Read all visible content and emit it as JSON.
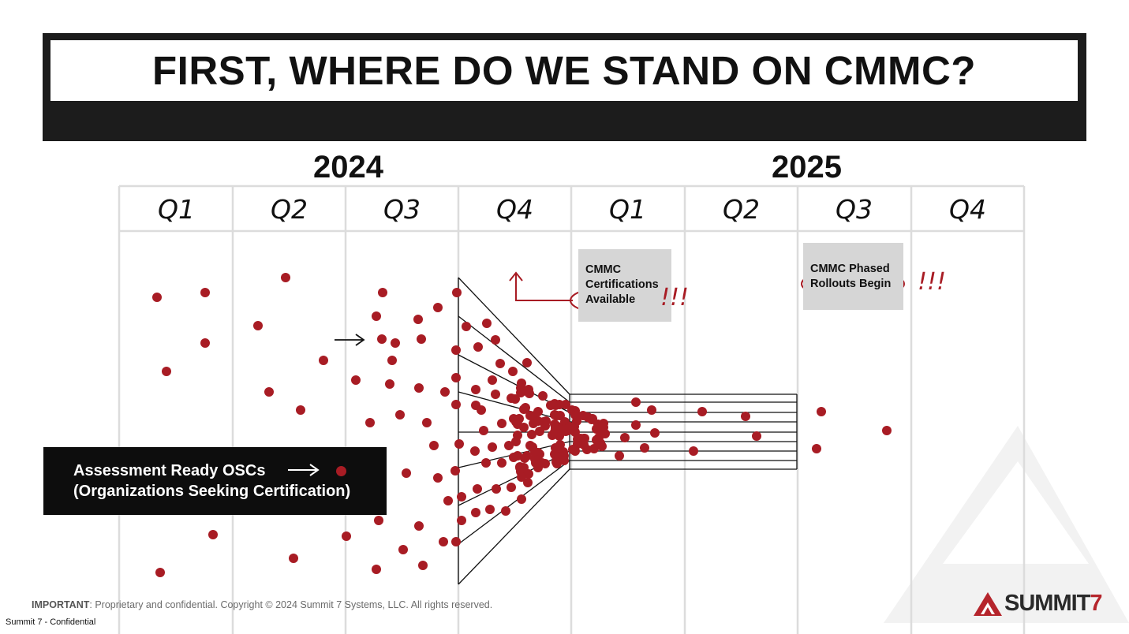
{
  "title": "FIRST, WHERE DO WE STAND ON CMMC?",
  "years": [
    "2024",
    "2025"
  ],
  "quarters": [
    "Q1",
    "Q2",
    "Q3",
    "Q4",
    "Q1",
    "Q2",
    "Q3",
    "Q4"
  ],
  "notes": [
    {
      "lines": [
        "CMMC",
        "Certifications",
        "Available"
      ],
      "exclaim": "!!!"
    },
    {
      "lines": [
        "CMMC Phased",
        "Rollouts Begin"
      ],
      "exclaim": "!!!"
    }
  ],
  "legend": {
    "line1": "Assessment Ready OSCs",
    "line2": "(Organizations Seeking Certification)",
    "dot_color": "#a81c24"
  },
  "footer": {
    "important_label": "IMPORTANT",
    "important_text": ": Proprietary and confidential. Copyright © 2024 Summit 7 Systems, LLC. All rights reserved.",
    "confidential": "Summit 7 - Confidential"
  },
  "logo": {
    "text_main": "SUMMIT",
    "text_accent": "7"
  },
  "colors": {
    "accent": "#a81c24",
    "title_bar": "#1c1c1c",
    "note_bg": "#d6d6d6",
    "grid": "#dcdcdc"
  }
}
